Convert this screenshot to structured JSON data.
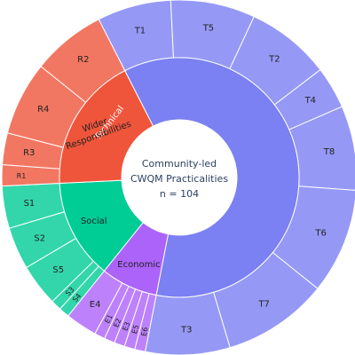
{
  "chart_data": {
    "type": "sunburst",
    "center": {
      "lines": [
        "Community-led",
        "CWQM Practicalities",
        "n = 104"
      ]
    },
    "sectors": [
      {
        "name": "Technical",
        "value": 63,
        "color": "#7b80f2",
        "children": [
          {
            "name": "T1",
            "value": 7
          },
          {
            "name": "T5",
            "value": 8
          },
          {
            "name": "T2",
            "value": 8
          },
          {
            "name": "T4",
            "value": 4
          },
          {
            "name": "T8",
            "value": 8
          },
          {
            "name": "T6",
            "value": 10
          },
          {
            "name": "T7",
            "value": 10
          },
          {
            "name": "T3",
            "value": 8
          }
        ]
      },
      {
        "name": "Economic",
        "value": 8,
        "color": "#ac63fa",
        "children": [
          {
            "name": "E6",
            "value": 1
          },
          {
            "name": "E5",
            "value": 1
          },
          {
            "name": "E3",
            "value": 1
          },
          {
            "name": "E2",
            "value": 1
          },
          {
            "name": "E1",
            "value": 1
          },
          {
            "name": "E4",
            "value": 3
          }
        ]
      },
      {
        "name": "Social",
        "value": 14,
        "color": "#00cc96",
        "children": [
          {
            "name": "S4",
            "value": 1
          },
          {
            "name": "S3",
            "value": 1
          },
          {
            "name": "S5",
            "value": 4
          },
          {
            "name": "S2",
            "value": 4
          },
          {
            "name": "S1",
            "value": 4
          }
        ]
      },
      {
        "name": "Wider Responsibilities",
        "value": 19,
        "color": "#ef553b",
        "children": [
          {
            "name": "R1",
            "value": 2
          },
          {
            "name": "R3",
            "value": 3
          },
          {
            "name": "R4",
            "value": 7
          },
          {
            "name": "R2",
            "value": 7
          }
        ]
      }
    ]
  }
}
